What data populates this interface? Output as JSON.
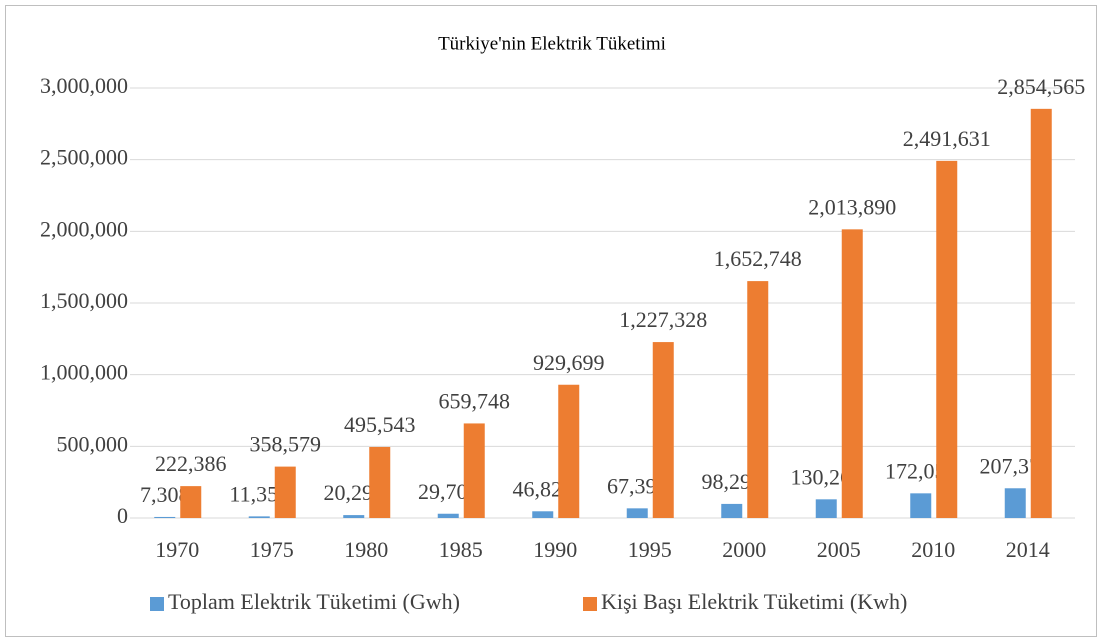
{
  "chart_data": {
    "type": "bar",
    "title": "Türkiye'nin Elektrik Tüketimi",
    "categories": [
      "1970",
      "1975",
      "1980",
      "1985",
      "1990",
      "1995",
      "2000",
      "2005",
      "2010",
      "2014"
    ],
    "series": [
      {
        "name": "Toplam Elektrik Tüketimi (Gwh)",
        "color": "#5b9bd5",
        "values": [
          7308,
          11359,
          20298,
          29709,
          46820,
          67394,
          98296,
          130263,
          172051,
          207375
        ],
        "value_labels": [
          "7,308",
          "11,359",
          "20,298",
          "29,709",
          "46,820",
          "67,394",
          "98,296",
          "130,263",
          "172,051",
          "207,375"
        ]
      },
      {
        "name": "Kişi Başı Elektrik Tüketimi (Kwh)",
        "color": "#ed7d31",
        "values": [
          222386,
          358579,
          495543,
          659748,
          929699,
          1227328,
          1652748,
          2013890,
          2491631,
          2854565
        ],
        "value_labels": [
          "222,386",
          "358,579",
          "495,543",
          "659,748",
          "929,699",
          "1,227,328",
          "1,652,748",
          "2,013,890",
          "2,491,631",
          "2,854,565"
        ]
      }
    ],
    "ylim": [
      0,
      3000000
    ],
    "yticks": [
      0,
      {
        "value": 500000,
        "label": "500,000"
      },
      {
        "value": 1000000,
        "label": "1,000,000"
      },
      {
        "value": 1500000,
        "label": "1,500,000"
      },
      {
        "value": 2000000,
        "label": "2,000,000"
      },
      {
        "value": 2500000,
        "label": "2,500,000"
      },
      {
        "value": 3000000,
        "label": "3,000,000"
      }
    ],
    "grid": true,
    "legend": "bottom"
  }
}
